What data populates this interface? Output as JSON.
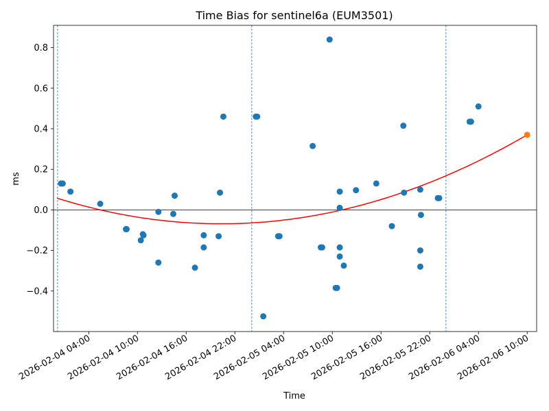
{
  "chart_data": {
    "type": "scatter",
    "title": "Time Bias for sentinel6a (EUM3501)",
    "xlabel": "Time",
    "ylabel": "ms",
    "x_unit": "datetime",
    "xlim": [
      "2026-02-03T23:40:00",
      "2026-02-06T11:10:00"
    ],
    "ylim": [
      -0.6,
      0.91
    ],
    "yticks": [
      -0.4,
      -0.2,
      0.0,
      0.2,
      0.4,
      0.6,
      0.8
    ],
    "ytick_labels": [
      "−0.4",
      "−0.2",
      "0.0",
      "0.2",
      "0.4",
      "0.6",
      "0.8"
    ],
    "xticks": [
      "2026-02-04T04:00:00",
      "2026-02-04T10:00:00",
      "2026-02-04T16:00:00",
      "2026-02-04T22:00:00",
      "2026-02-05T04:00:00",
      "2026-02-05T10:00:00",
      "2026-02-05T16:00:00",
      "2026-02-05T22:00:00",
      "2026-02-06T04:00:00",
      "2026-02-06T10:00:00"
    ],
    "xtick_labels": [
      "2026-02-04 04:00",
      "2026-02-04 10:00",
      "2026-02-04 16:00",
      "2026-02-04 22:00",
      "2026-02-05 04:00",
      "2026-02-05 10:00",
      "2026-02-05 16:00",
      "2026-02-05 22:00",
      "2026-02-06 04:00",
      "2026-02-06 10:00"
    ],
    "vlines": [
      "2026-02-04T00:10:00",
      "2026-02-05T00:05:00",
      "2026-02-06T00:00:00"
    ],
    "hline": 0.0,
    "grid": false,
    "points": [
      {
        "x": "2026-02-04T00:35:00",
        "y": 0.13
      },
      {
        "x": "2026-02-04T00:48:00",
        "y": 0.13
      },
      {
        "x": "2026-02-04T01:45:00",
        "y": 0.09
      },
      {
        "x": "2026-02-04T05:25:00",
        "y": 0.03
      },
      {
        "x": "2026-02-04T08:35:00",
        "y": -0.095
      },
      {
        "x": "2026-02-04T08:40:00",
        "y": -0.095
      },
      {
        "x": "2026-02-04T10:25:00",
        "y": -0.15
      },
      {
        "x": "2026-02-04T10:40:00",
        "y": -0.12
      },
      {
        "x": "2026-02-04T10:45:00",
        "y": -0.125
      },
      {
        "x": "2026-02-04T12:35:00",
        "y": -0.01
      },
      {
        "x": "2026-02-04T12:35:00",
        "y": -0.26
      },
      {
        "x": "2026-02-04T14:35:00",
        "y": 0.07
      },
      {
        "x": "2026-02-04T14:25:00",
        "y": -0.02
      },
      {
        "x": "2026-02-04T17:05:00",
        "y": -0.285
      },
      {
        "x": "2026-02-04T18:10:00",
        "y": -0.125
      },
      {
        "x": "2026-02-04T18:10:00",
        "y": -0.185
      },
      {
        "x": "2026-02-04T20:00:00",
        "y": -0.13
      },
      {
        "x": "2026-02-04T20:10:00",
        "y": 0.085
      },
      {
        "x": "2026-02-04T20:35:00",
        "y": 0.46
      },
      {
        "x": "2026-02-05T00:35:00",
        "y": 0.46
      },
      {
        "x": "2026-02-05T00:45:00",
        "y": 0.46
      },
      {
        "x": "2026-02-05T01:30:00",
        "y": -0.525
      },
      {
        "x": "2026-02-05T03:20:00",
        "y": -0.13
      },
      {
        "x": "2026-02-05T03:30:00",
        "y": -0.13
      },
      {
        "x": "2026-02-05T07:35:00",
        "y": 0.315
      },
      {
        "x": "2026-02-05T08:35:00",
        "y": -0.185
      },
      {
        "x": "2026-02-05T08:45:00",
        "y": -0.185
      },
      {
        "x": "2026-02-05T09:40:00",
        "y": 0.84
      },
      {
        "x": "2026-02-05T10:25:00",
        "y": -0.385
      },
      {
        "x": "2026-02-05T10:35:00",
        "y": -0.385
      },
      {
        "x": "2026-02-05T10:55:00",
        "y": 0.09
      },
      {
        "x": "2026-02-05T10:55:00",
        "y": 0.01
      },
      {
        "x": "2026-02-05T10:55:00",
        "y": -0.185
      },
      {
        "x": "2026-02-05T10:55:00",
        "y": -0.23
      },
      {
        "x": "2026-02-05T11:25:00",
        "y": -0.275
      },
      {
        "x": "2026-02-05T12:55:00",
        "y": 0.097
      },
      {
        "x": "2026-02-05T15:25:00",
        "y": 0.13
      },
      {
        "x": "2026-02-05T17:20:00",
        "y": -0.08
      },
      {
        "x": "2026-02-05T18:45:00",
        "y": 0.415
      },
      {
        "x": "2026-02-05T18:50:00",
        "y": 0.085
      },
      {
        "x": "2026-02-05T20:50:00",
        "y": 0.1
      },
      {
        "x": "2026-02-05T20:50:00",
        "y": -0.2
      },
      {
        "x": "2026-02-05T20:55:00",
        "y": -0.025
      },
      {
        "x": "2026-02-05T20:50:00",
        "y": -0.28
      },
      {
        "x": "2026-02-05T23:00:00",
        "y": 0.058
      },
      {
        "x": "2026-02-05T23:10:00",
        "y": 0.058
      },
      {
        "x": "2026-02-06T02:55:00",
        "y": 0.435
      },
      {
        "x": "2026-02-06T03:05:00",
        "y": 0.435
      },
      {
        "x": "2026-02-06T04:00:00",
        "y": 0.51
      }
    ],
    "predicted_point": {
      "x": "2026-02-06T10:00:00",
      "y": 0.37
    },
    "fit_curve": {
      "type": "quadratic",
      "points": [
        {
          "x": "2026-02-04T00:05:00",
          "y": 0.058
        },
        {
          "x": "2026-02-04T19:00:00",
          "y": -0.068
        },
        {
          "x": "2026-02-06T10:00:00",
          "y": 0.37
        }
      ]
    },
    "colors": {
      "points": "#1f77b4",
      "predicted": "#ff7f0e",
      "fit": "#ff0000",
      "vlines": "#1f77b4",
      "hline": "#000000"
    }
  }
}
